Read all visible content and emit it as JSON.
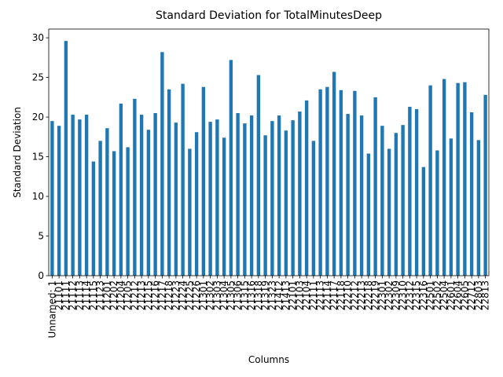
{
  "chart_data": {
    "type": "bar",
    "title": "Standard Deviation for TotalMinutesDeep",
    "x_label": "Columns",
    "y_label": "Standard Deviation",
    "color": "#1f77b4",
    "grid": false,
    "categories": [
      "Unnamed: 1",
      "21101",
      "21111",
      "21112",
      "21113",
      "21114",
      "21115",
      "21123",
      "21201",
      "21202",
      "21204",
      "21205",
      "21212",
      "21213",
      "21215",
      "21216",
      "21217",
      "21218",
      "21223",
      "21224",
      "21225",
      "21226",
      "21301",
      "21302",
      "21303",
      "21304",
      "21305",
      "21306",
      "21315",
      "21316",
      "21318",
      "21319",
      "21323",
      "21412",
      "21413",
      "22101",
      "22103",
      "22104",
      "22111",
      "22113",
      "22114",
      "22117",
      "22118",
      "22210",
      "22212",
      "22213",
      "22218",
      "22219",
      "22301",
      "22302",
      "22309",
      "22310",
      "22312",
      "22315",
      "22316",
      "22501",
      "22502",
      "22504",
      "22601",
      "22604",
      "22605",
      "22712",
      "22803",
      "22813"
    ],
    "values": [
      19.5,
      18.9,
      29.6,
      20.3,
      19.7,
      20.3,
      14.4,
      17.0,
      18.6,
      15.7,
      21.7,
      16.2,
      22.3,
      20.3,
      18.4,
      20.5,
      28.2,
      23.5,
      19.3,
      24.2,
      16.0,
      18.1,
      23.8,
      19.4,
      19.7,
      17.4,
      27.2,
      20.5,
      19.2,
      20.2,
      25.3,
      17.7,
      19.5,
      20.2,
      18.3,
      19.6,
      20.7,
      22.1,
      17.0,
      23.5,
      23.8,
      25.7,
      23.4,
      20.4,
      23.3,
      20.2,
      15.4,
      22.5,
      18.9,
      16.0,
      18.0,
      19.0,
      21.3,
      21.0,
      13.7,
      24.0,
      15.8,
      24.8,
      17.3,
      24.3,
      24.4,
      20.6,
      17.1,
      22.8
    ],
    "ylim": [
      0,
      31.1
    ],
    "yticks": [
      0,
      5,
      10,
      15,
      20,
      25,
      30
    ]
  }
}
